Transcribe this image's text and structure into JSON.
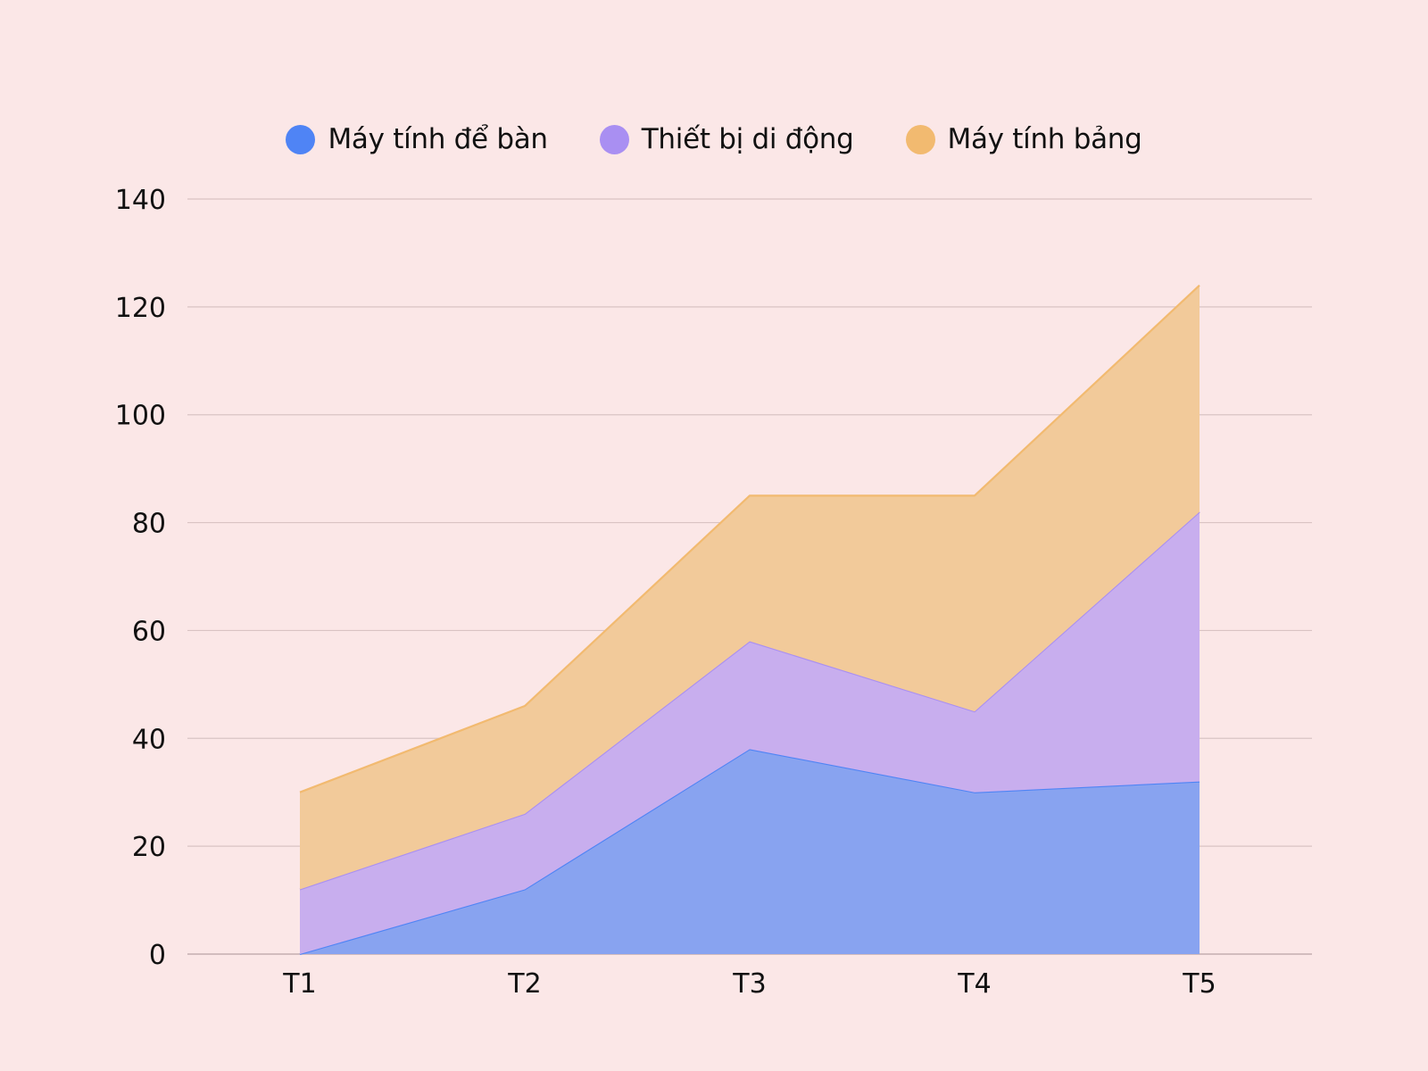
{
  "colors": {
    "background": "#FBE7E7",
    "grid": "#D9C3C3",
    "axis": "#C4AEB0"
  },
  "legend": {
    "items": [
      {
        "label": "Máy tính để bàn",
        "color": "#4F84F5"
      },
      {
        "label": "Thiết bị di động",
        "color": "#A98FF2"
      },
      {
        "label": "Máy tính bảng",
        "color": "#F2BA70"
      }
    ]
  },
  "chart_data": {
    "type": "area",
    "stacked": true,
    "title": "",
    "xlabel": "",
    "ylabel": "",
    "categories": [
      "T1",
      "T2",
      "T3",
      "T4",
      "T5"
    ],
    "series": [
      {
        "name": "Máy tính để bàn",
        "values": [
          0,
          12,
          38,
          30,
          32
        ],
        "line_color": "#4F84F5",
        "fill_color": "#88A3F0"
      },
      {
        "name": "Thiết bị di động",
        "values": [
          12,
          14,
          20,
          15,
          50
        ],
        "line_color": "#A98FF2",
        "fill_color": "#C8AEEE"
      },
      {
        "name": "Máy tính bảng",
        "values": [
          18,
          20,
          27,
          40,
          42
        ],
        "line_color": "#F2BA70",
        "fill_color": "#F2CA9A"
      }
    ],
    "ylim": [
      0,
      140
    ],
    "yticks": [
      0,
      20,
      40,
      60,
      80,
      100,
      120,
      140
    ],
    "grid": true,
    "legend_position": "top"
  }
}
